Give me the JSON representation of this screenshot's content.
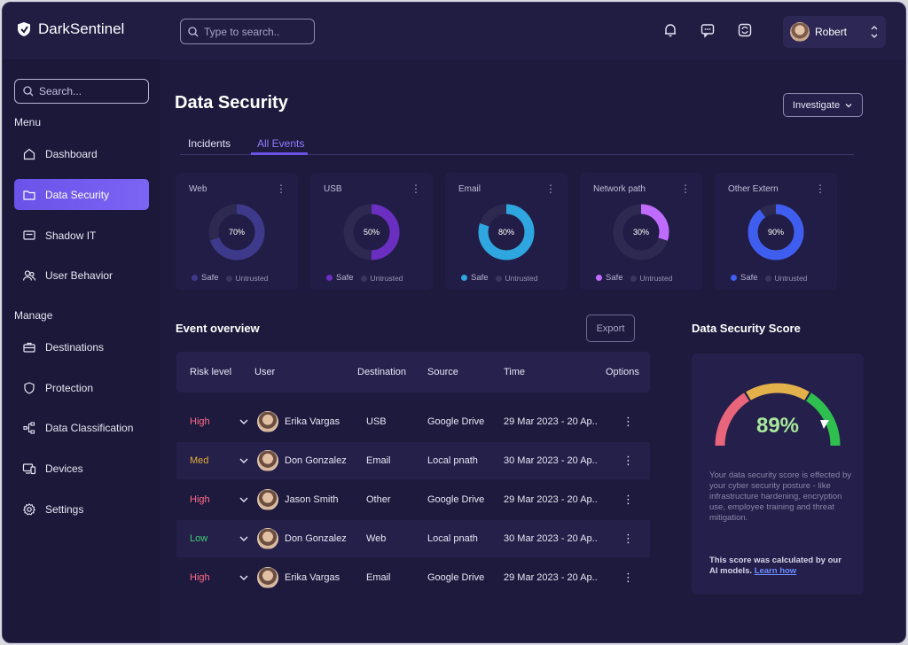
{
  "app": {
    "name": "DarkSentinel"
  },
  "header": {
    "search_placeholder": "Type to search..",
    "user_name": "Robert",
    "icons": [
      "bell-icon",
      "chat-icon",
      "sync-icon"
    ]
  },
  "sidebar": {
    "search_placeholder": "Search...",
    "sections": [
      {
        "title": "Menu",
        "items": [
          {
            "label": "Dashboard",
            "icon": "home-icon",
            "active": false
          },
          {
            "label": "Data Security",
            "icon": "folder-icon",
            "active": true
          },
          {
            "label": "Shadow IT",
            "icon": "monitor-icon",
            "active": false
          },
          {
            "label": "User Behavior",
            "icon": "users-icon",
            "active": false
          }
        ]
      },
      {
        "title": "Manage",
        "items": [
          {
            "label": "Destinations",
            "icon": "briefcase-icon",
            "active": false
          },
          {
            "label": "Protection",
            "icon": "shield-icon",
            "active": false
          },
          {
            "label": "Data Classification",
            "icon": "hierarchy-icon",
            "active": false
          },
          {
            "label": "Devices",
            "icon": "devices-icon",
            "active": false
          },
          {
            "label": "Settings",
            "icon": "gear-icon",
            "active": false
          }
        ]
      }
    ]
  },
  "main": {
    "title": "Data Security",
    "investigate_label": "Investigate",
    "tabs": [
      {
        "label": "Incidents",
        "active": false
      },
      {
        "label": "All Events",
        "active": true
      }
    ],
    "cards": [
      {
        "title": "Web",
        "percent": 70,
        "percent_label": "70%",
        "color": "#3d3a8c",
        "safe_label": "Safe",
        "untrusted_label": "Untrusted"
      },
      {
        "title": "USB",
        "percent": 50,
        "percent_label": "50%",
        "color": "#6a2ec0",
        "safe_label": "Safe",
        "untrusted_label": "Untrusted"
      },
      {
        "title": "Email",
        "percent": 80,
        "percent_label": "80%",
        "color": "#2ea7e0",
        "safe_label": "Safe",
        "untrusted_label": "Untrusted"
      },
      {
        "title": "Network path",
        "percent": 30,
        "percent_label": "30%",
        "color": "#c06bff",
        "safe_label": "Safe",
        "untrusted_label": "Untrusted"
      },
      {
        "title": "Other Extern",
        "percent": 90,
        "percent_label": "90%",
        "color": "#3f5ef0",
        "safe_label": "Safe",
        "untrusted_label": "Untrusted"
      }
    ],
    "events": {
      "title": "Event overview",
      "export_label": "Export",
      "columns": [
        "Risk level",
        "User",
        "Destination",
        "Source",
        "Time",
        "Options"
      ],
      "rows": [
        {
          "risk": "High",
          "user": "Erika Vargas",
          "destination": "USB",
          "source": "Google Drive",
          "time": "29 Mar 2023 - 20 Ap.."
        },
        {
          "risk": "Med",
          "user": "Don Gonzalez",
          "destination": "Email",
          "source": "Local pnath",
          "time": "30 Mar 2023 - 20 Ap.."
        },
        {
          "risk": "High",
          "user": "Jason Smith",
          "destination": "Other",
          "source": "Google Drive",
          "time": "29 Mar 2023 - 20 Ap.."
        },
        {
          "risk": "Low",
          "user": "Don Gonzalez",
          "destination": "Web",
          "source": "Local pnath",
          "time": "30 Mar 2023 - 20 Ap.."
        },
        {
          "risk": "High",
          "user": "Erika Vargas",
          "destination": "Email",
          "source": "Google Drive",
          "time": "29 Mar 2023 - 20 Ap.."
        }
      ]
    },
    "score": {
      "title": "Data Security Score",
      "value": "89%",
      "description": "Your data security score is effected by your cyber security posture - like infrastructure hardening, encryption use, employee training and threat mitigation.",
      "note": "This score was calculated by our AI models.",
      "learn_label": "Learn how"
    }
  },
  "colors": {
    "accent": "#6b52e8",
    "high": "#ff6b86",
    "med": "#e2a93b",
    "low": "#3ecf72",
    "score": "#a8e89a"
  }
}
